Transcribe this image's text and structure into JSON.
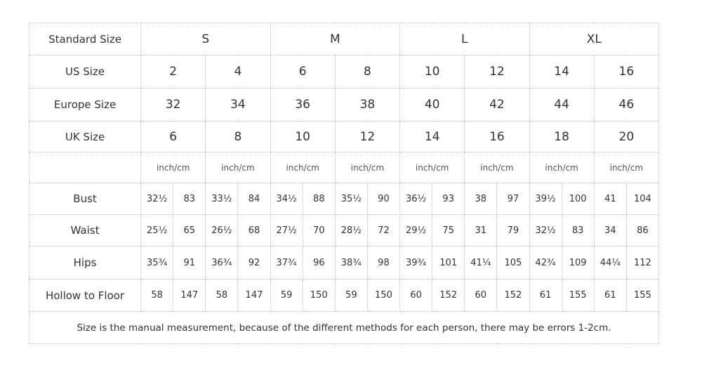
{
  "table": {
    "header_label": "Standard Size",
    "standard_sizes": [
      "S",
      "M",
      "L",
      "XL"
    ],
    "size_rows": [
      {
        "label": "US Size",
        "values": [
          "2",
          "4",
          "6",
          "8",
          "10",
          "12",
          "14",
          "16"
        ]
      },
      {
        "label": "Europe Size",
        "values": [
          "32",
          "34",
          "36",
          "38",
          "40",
          "42",
          "44",
          "46"
        ]
      },
      {
        "label": "UK Size",
        "values": [
          "6",
          "8",
          "10",
          "12",
          "14",
          "16",
          "18",
          "20"
        ]
      }
    ],
    "unit_label": "inch/cm",
    "measurement_rows": [
      {
        "label": "Bust",
        "values": [
          "32½",
          "83",
          "33½",
          "84",
          "34½",
          "88",
          "35½",
          "90",
          "36½",
          "93",
          "38",
          "97",
          "39½",
          "100",
          "41",
          "104"
        ]
      },
      {
        "label": "Waist",
        "values": [
          "25½",
          "65",
          "26½",
          "68",
          "27½",
          "70",
          "28½",
          "72",
          "29½",
          "75",
          "31",
          "79",
          "32½",
          "83",
          "34",
          "86"
        ]
      },
      {
        "label": "Hips",
        "values": [
          "35¾",
          "91",
          "36¾",
          "92",
          "37¾",
          "96",
          "38¾",
          "98",
          "39¾",
          "101",
          "41¼",
          "105",
          "42¾",
          "109",
          "44¼",
          "112"
        ]
      },
      {
        "label": "Hollow to Floor",
        "values": [
          "58",
          "147",
          "58",
          "147",
          "59",
          "150",
          "59",
          "150",
          "60",
          "152",
          "60",
          "152",
          "61",
          "155",
          "61",
          "155"
        ]
      }
    ],
    "note": "Size is the manual measurement, because of the different methods for each person, there may be errors 1-2cm."
  }
}
